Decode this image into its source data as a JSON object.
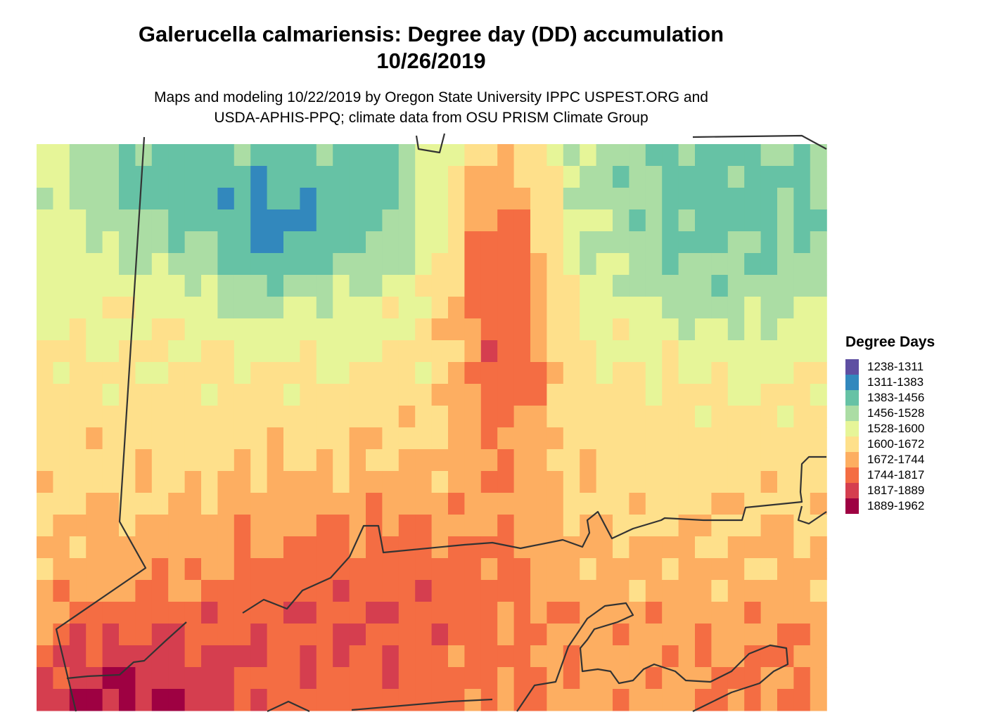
{
  "title_line1": "Galerucella calmariensis: Degree day (DD) accumulation",
  "title_line2": "10/26/2019",
  "subtitle_line1": "Maps and modeling 10/22/2019 by Oregon State University IPPC USPEST.ORG and",
  "subtitle_line2": "USDA-APHIS-PPQ; climate data from OSU PRISM Climate Group",
  "legend": {
    "title": "Degree Days",
    "items": [
      {
        "label": "1238-1311",
        "color": "#5E4FA2"
      },
      {
        "label": "1311-1383",
        "color": "#3288BD"
      },
      {
        "label": "1383-1456",
        "color": "#66C2A5"
      },
      {
        "label": "1456-1528",
        "color": "#ABDDA4"
      },
      {
        "label": "1528-1600",
        "color": "#E6F598"
      },
      {
        "label": "1600-1672",
        "color": "#FEE08B"
      },
      {
        "label": "1672-1744",
        "color": "#FDAE61"
      },
      {
        "label": "1744-1817",
        "color": "#F46D43"
      },
      {
        "label": "1817-1889",
        "color": "#D53E4F"
      },
      {
        "label": "1889-1962",
        "color": "#9E0142"
      }
    ]
  }
}
